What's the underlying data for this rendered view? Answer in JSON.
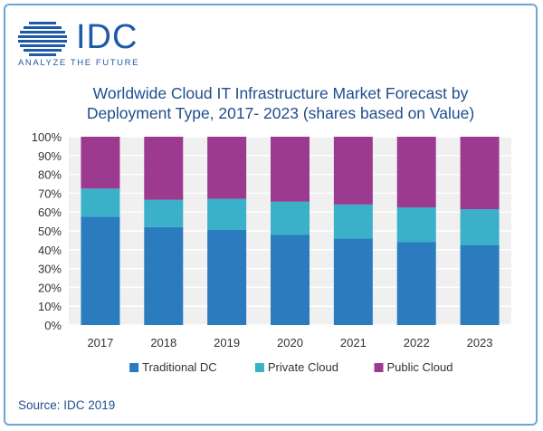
{
  "logo": {
    "name": "IDC",
    "tagline": "ANALYZE THE FUTURE",
    "color": "#1f5aa6"
  },
  "source": "Source: IDC 2019",
  "chart_data": {
    "type": "bar",
    "stacked": true,
    "title_line1": "Worldwide Cloud IT Infrastructure Market Forecast by",
    "title_line2": "Deployment Type, 2017- 2023 (shares based on Value)",
    "categories": [
      "2017",
      "2018",
      "2019",
      "2020",
      "2021",
      "2022",
      "2023"
    ],
    "series": [
      {
        "name": "Traditional DC",
        "color": "#2b7bbf",
        "values": [
          57.5,
          52,
          50.5,
          48,
          46,
          44,
          42.5
        ]
      },
      {
        "name": "Private Cloud",
        "color": "#3ab0c9",
        "values": [
          15,
          14.5,
          16.5,
          17.5,
          18,
          18.5,
          19
        ]
      },
      {
        "name": "Public Cloud",
        "color": "#9b3a8f",
        "values": [
          27.5,
          33.5,
          33,
          34.5,
          36,
          37.5,
          38.5
        ]
      }
    ],
    "y_ticks": [
      "0%",
      "10%",
      "20%",
      "30%",
      "40%",
      "50%",
      "60%",
      "70%",
      "80%",
      "90%",
      "100%"
    ],
    "ylim": [
      0,
      100
    ],
    "grid": true,
    "legend_position": "bottom",
    "plot_background": "#f0f0f0"
  }
}
